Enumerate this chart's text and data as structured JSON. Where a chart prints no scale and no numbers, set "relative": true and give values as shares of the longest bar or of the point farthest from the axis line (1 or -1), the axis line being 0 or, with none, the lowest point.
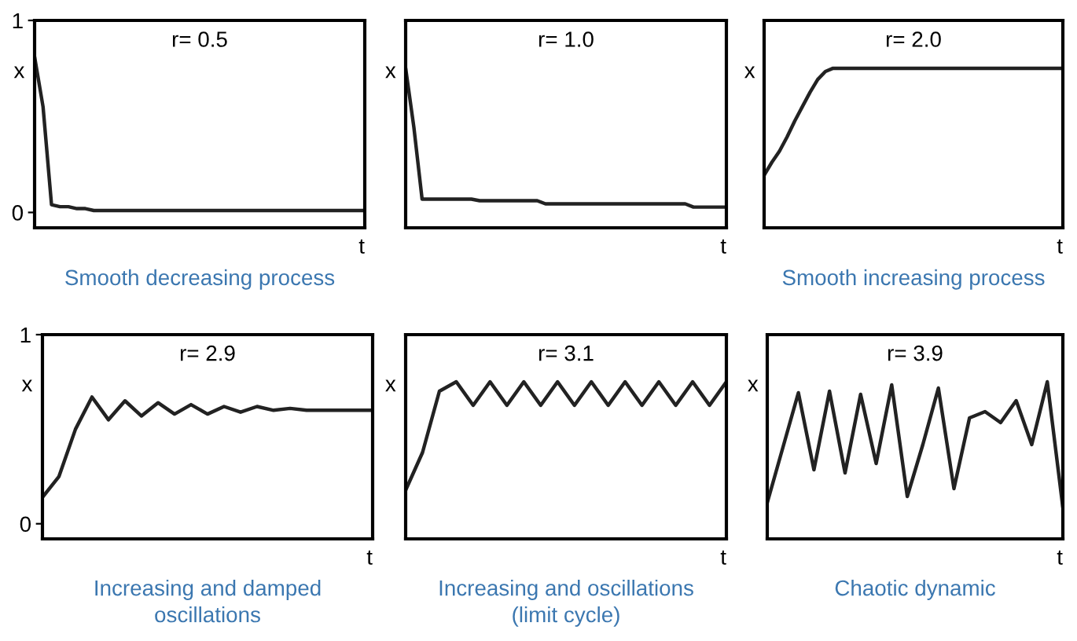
{
  "chart_data": [
    {
      "type": "line",
      "title": "r= 0.5",
      "xlabel": "t",
      "ylabel": "x",
      "ylim": [
        -0.08,
        1
      ],
      "yticks": [
        0,
        1
      ],
      "tick_labels": "y",
      "categories": [
        null,
        null,
        null,
        null,
        null,
        null,
        null,
        null,
        null,
        null,
        null,
        null,
        null,
        null,
        null,
        null,
        null,
        null,
        null,
        null,
        null,
        null,
        null,
        null,
        null,
        null,
        null,
        null,
        null,
        null,
        null,
        null,
        null,
        null,
        null,
        null,
        null,
        null,
        null,
        null
      ],
      "series": [
        {
          "color": "#222222",
          "values": [
            0.81,
            0.55,
            0.04,
            0.03,
            0.03,
            0.02,
            0.02,
            0.01,
            0.01,
            0.01,
            0.01,
            0.01,
            0.01,
            0.01,
            0.01,
            0.01,
            0.01,
            0.01,
            0.01,
            0.01,
            0.01,
            0.01,
            0.01,
            0.01,
            0.01,
            0.01,
            0.01,
            0.01,
            0.01,
            0.01,
            0.01,
            0.01,
            0.01,
            0.01,
            0.01,
            0.01,
            0.01,
            0.01,
            0.01,
            0.01
          ]
        }
      ],
      "annotations": [
        "Smooth decreasing process"
      ]
    },
    {
      "type": "line",
      "title": "r= 1.0",
      "xlabel": "t",
      "ylabel": "x",
      "relative": true,
      "tick_labels": false,
      "categories": [
        null,
        null,
        null,
        null,
        null,
        null,
        null,
        null,
        null,
        null,
        null,
        null,
        null,
        null,
        null,
        null,
        null,
        null,
        null,
        null,
        null,
        null,
        null,
        null,
        null,
        null,
        null,
        null,
        null,
        null,
        null,
        null,
        null,
        null,
        null,
        null,
        null,
        null,
        null,
        null
      ],
      "series": [
        {
          "color": "#222222",
          "values": [
            1,
            0.63,
            0.18,
            0.18,
            0.18,
            0.18,
            0.18,
            0.18,
            0.18,
            0.17,
            0.17,
            0.17,
            0.17,
            0.17,
            0.17,
            0.17,
            0.17,
            0.15,
            0.15,
            0.15,
            0.15,
            0.15,
            0.15,
            0.15,
            0.15,
            0.15,
            0.15,
            0.15,
            0.15,
            0.15,
            0.15,
            0.15,
            0.15,
            0.15,
            0.15,
            0.13,
            0.13,
            0.13,
            0.13,
            0.13
          ]
        }
      ]
    },
    {
      "type": "line",
      "title": "r= 2.0",
      "xlabel": "t",
      "ylabel": "x",
      "relative": true,
      "tick_labels": false,
      "categories": [
        null,
        null,
        null,
        null,
        null,
        null,
        null,
        null,
        null,
        null,
        null,
        null,
        null,
        null,
        null,
        null,
        null,
        null,
        null,
        null,
        null,
        null,
        null,
        null,
        null,
        null,
        null,
        null,
        null,
        null,
        null,
        null,
        null,
        null,
        null,
        null,
        null,
        null,
        null,
        null
      ],
      "series": [
        {
          "color": "#222222",
          "values": [
            0.33,
            0.41,
            0.48,
            0.57,
            0.67,
            0.76,
            0.85,
            0.93,
            0.98,
            1,
            1,
            1,
            1,
            1,
            1,
            1,
            1,
            1,
            1,
            1,
            1,
            1,
            1,
            1,
            1,
            1,
            1,
            1,
            1,
            1,
            1,
            1,
            1,
            1,
            1,
            1,
            1,
            1,
            1,
            1
          ]
        }
      ],
      "annotations": [
        "Smooth increasing process"
      ]
    },
    {
      "type": "line",
      "title": "r= 2.9",
      "xlabel": "t",
      "ylabel": "x",
      "ylim": [
        -0.08,
        1
      ],
      "yticks": [
        0,
        1
      ],
      "tick_labels": "y",
      "categories": [
        null,
        null,
        null,
        null,
        null,
        null,
        null,
        null,
        null,
        null,
        null,
        null,
        null,
        null,
        null,
        null,
        null,
        null,
        null,
        null,
        null
      ],
      "series": [
        {
          "color": "#222222",
          "values": [
            0.14,
            0.25,
            0.5,
            0.67,
            0.55,
            0.65,
            0.57,
            0.64,
            0.58,
            0.63,
            0.58,
            0.62,
            0.59,
            0.62,
            0.6,
            0.61,
            0.6,
            0.6,
            0.6,
            0.6,
            0.6
          ]
        }
      ],
      "annotations": [
        "Increasing and damped\noscillations"
      ]
    },
    {
      "type": "line",
      "title": "r= 3.1",
      "xlabel": "t",
      "ylabel": "x",
      "relative": true,
      "tick_labels": false,
      "categories": [
        null,
        null,
        null,
        null,
        null,
        null,
        null,
        null,
        null,
        null,
        null,
        null,
        null,
        null,
        null,
        null,
        null,
        null,
        null,
        null
      ],
      "series": [
        {
          "color": "#222222",
          "values": [
            0.31,
            0.55,
            0.94,
            1,
            0.85,
            1,
            0.85,
            1,
            0.85,
            1,
            0.85,
            1,
            0.85,
            1,
            0.85,
            1,
            0.85,
            1,
            0.85,
            1
          ]
        }
      ],
      "annotations": [
        "Increasing and oscillations\n(limit cycle)"
      ]
    },
    {
      "type": "line",
      "title": "r= 3.9",
      "xlabel": "t",
      "ylabel": "x",
      "relative": true,
      "tick_labels": false,
      "categories": [
        null,
        null,
        null,
        null,
        null,
        null,
        null,
        null,
        null,
        null,
        null,
        null,
        null,
        null,
        null,
        null,
        null,
        null,
        null,
        null
      ],
      "series": [
        {
          "color": "#222222",
          "values": [
            0.23,
            0.58,
            0.93,
            0.44,
            0.94,
            0.42,
            0.92,
            0.48,
            0.98,
            0.27,
            0.6,
            0.96,
            0.32,
            0.77,
            0.81,
            0.74,
            0.88,
            0.6,
            1,
            0.2
          ]
        }
      ],
      "annotations": [
        "Chaotic dynamic"
      ]
    }
  ]
}
